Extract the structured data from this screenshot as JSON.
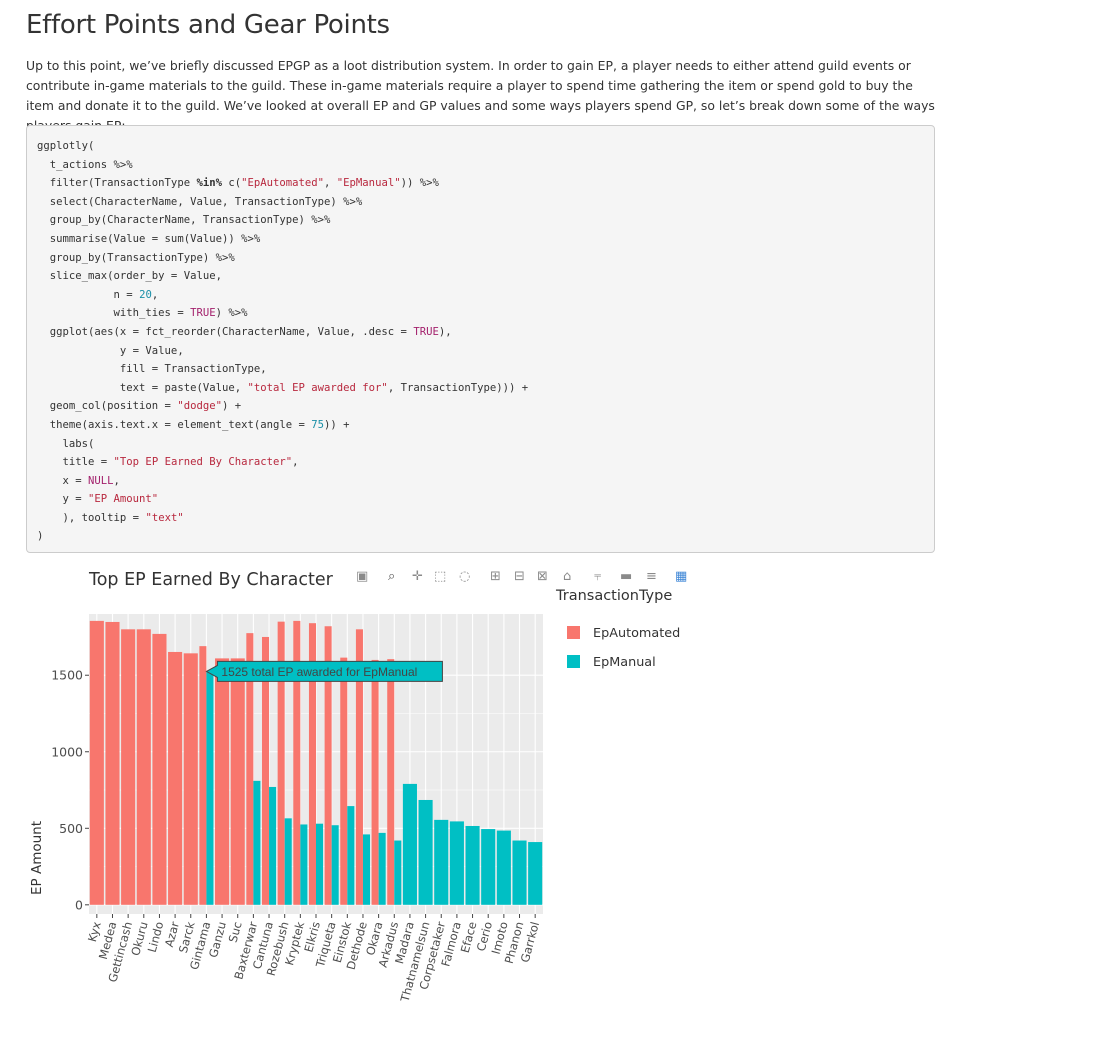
{
  "page": {
    "heading": "Effort Points and Gear Points",
    "intro": "Up to this point, we’ve briefly discussed EPGP as a loot distribution system. In order to gain EP, a player needs to either attend guild events or contribute in-game materials to the guild. These in-game materials require a player to spend time gathering the item or spend gold to buy the item and donate it to the guild. We’ve looked at overall EP and GP values and some ways players spend GP, so let’s break down some of the ways players gain EP:"
  },
  "code": {
    "lines": [
      "ggplotly(",
      "  t_actions %>%",
      "  filter(TransactionType %in% c(\"EpAutomated\", \"EpManual\")) %>%",
      "  select(CharacterName, Value, TransactionType) %>%",
      "  group_by(CharacterName, TransactionType) %>%",
      "  summarise(Value = sum(Value)) %>%",
      "  group_by(TransactionType) %>%",
      "  slice_max(order_by = Value,",
      "            n = 20,",
      "            with_ties = TRUE) %>%",
      "  ggplot(aes(x = fct_reorder(CharacterName, Value, .desc = TRUE),",
      "             y = Value,",
      "             fill = TransactionType,",
      "             text = paste(Value, \"total EP awarded for\", TransactionType))) +",
      "  geom_col(position = \"dodge\") +",
      "  theme(axis.text.x = element_text(angle = 75)) +",
      "    labs(",
      "    title = \"Top EP Earned By Character\",",
      "    x = NULL,",
      "    y = \"EP Amount\"",
      "    ), tooltip = \"text\"",
      ")"
    ]
  },
  "modebar": {
    "icons": [
      "camera-icon",
      "zoom-icon",
      "pan-icon",
      "box-select-icon",
      "lasso-icon",
      "zoom-in-icon",
      "zoom-out-icon",
      "autoscale-icon",
      "home-icon",
      "spike-lines-icon",
      "hover-closest-icon",
      "hover-compare-icon",
      "plotly-logo-icon"
    ]
  },
  "legend": {
    "title": "TransactionType",
    "items": [
      {
        "label": "EpAutomated",
        "color": "#F8766D"
      },
      {
        "label": "EpManual",
        "color": "#00BFC4"
      }
    ]
  },
  "tooltip": {
    "text": "1525 total EP awarded for EpManual",
    "category": "Gintama",
    "series": "EpManual"
  },
  "chart_data": {
    "type": "bar",
    "title": "Top EP Earned By Character",
    "xlabel": "",
    "ylabel": "EP Amount",
    "ylim": [
      -60,
      1900
    ],
    "yticks": [
      0,
      500,
      1000,
      1500
    ],
    "grid": true,
    "legend_position": "right",
    "categories": [
      "Kyx",
      "Medea",
      "Gettincash",
      "Okuru",
      "Lindo",
      "Azar",
      "Sarck",
      "Gintama",
      "Ganzu",
      "Suc",
      "Baxterwar",
      "Cantuna",
      "Rozebush",
      "Kryptek",
      "Elkris",
      "Triqueta",
      "Einstok",
      "Dethode",
      "Okara",
      "Arkadus",
      "Madara",
      "Thatnamelsun",
      "Corpsetaker",
      "Falmora",
      "Eface",
      "Cerio",
      "Imoto",
      "Phanon",
      "Garrkol"
    ],
    "series": [
      {
        "name": "EpAutomated",
        "color": "#F8766D",
        "values": [
          1855,
          1848,
          1800,
          1800,
          1770,
          1652,
          1643,
          1690,
          1610,
          1610,
          1775,
          1750,
          1850,
          1855,
          1840,
          1820,
          1615,
          1800,
          1600,
          1605,
          null,
          null,
          null,
          null,
          null,
          null,
          null,
          null,
          null
        ]
      },
      {
        "name": "EpManual",
        "color": "#00BFC4",
        "values": [
          null,
          null,
          null,
          null,
          null,
          null,
          null,
          1525,
          null,
          null,
          810,
          770,
          565,
          525,
          530,
          520,
          645,
          460,
          470,
          420,
          790,
          685,
          555,
          545,
          515,
          495,
          485,
          420,
          410
        ]
      }
    ]
  }
}
